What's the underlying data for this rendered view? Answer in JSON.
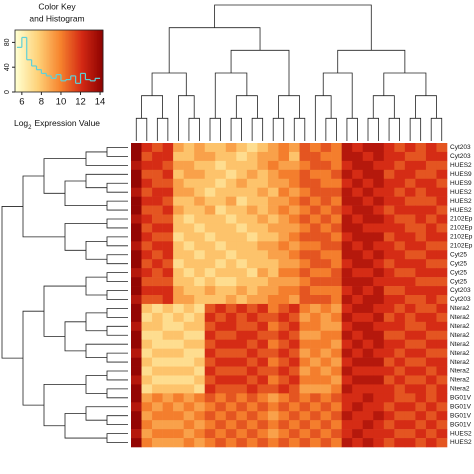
{
  "chart_data": {
    "type": "heatmap",
    "rows": [
      "Cyt203",
      "Cyt203",
      "HUES2",
      "HUES9",
      "HUES9",
      "HUES2",
      "HUES2",
      "HUES2",
      "2102Ep",
      "2102Ep",
      "2102Ep",
      "2102Ep",
      "Cyt25",
      "Cyt25",
      "Cyt25",
      "Cyt25",
      "Cyt203",
      "Cyt203",
      "Ntera2",
      "Ntera2",
      "Ntera2",
      "Ntera2",
      "Ntera2",
      "Ntera2",
      "Ntera2",
      "Ntera2",
      "Ntera2",
      "Ntera2",
      "BG01V",
      "BG01V",
      "BG01V",
      "BG01V",
      "HUES2",
      "HUES2"
    ],
    "columns": [
      null,
      null,
      null,
      null,
      null,
      null,
      null,
      null,
      null,
      null,
      null,
      null,
      null,
      null,
      null,
      null,
      null,
      null,
      null,
      null,
      null,
      null,
      null,
      null,
      null,
      null,
      null,
      null,
      null,
      null
    ],
    "values": [
      [
        14,
        12,
        11,
        12,
        9,
        8,
        9,
        8,
        8,
        9,
        8,
        7,
        8,
        9,
        10,
        9,
        11,
        10,
        11,
        10,
        13,
        12,
        13,
        13,
        12,
        11,
        12,
        11,
        12,
        11
      ],
      [
        14,
        11,
        12,
        12,
        8,
        8,
        9,
        9,
        8,
        8,
        7,
        8,
        9,
        9,
        10,
        8,
        11,
        11,
        10,
        10,
        13,
        13,
        12,
        13,
        12,
        12,
        11,
        11,
        12,
        12
      ],
      [
        13,
        12,
        12,
        11,
        9,
        9,
        8,
        8,
        7,
        8,
        8,
        8,
        9,
        10,
        9,
        9,
        10,
        11,
        11,
        10,
        12,
        13,
        13,
        12,
        12,
        11,
        12,
        12,
        11,
        11
      ],
      [
        14,
        11,
        11,
        12,
        8,
        9,
        9,
        8,
        8,
        7,
        8,
        9,
        8,
        9,
        10,
        10,
        11,
        10,
        10,
        11,
        13,
        12,
        13,
        13,
        11,
        12,
        12,
        11,
        11,
        12
      ],
      [
        14,
        12,
        11,
        11,
        9,
        8,
        8,
        8,
        7,
        8,
        9,
        8,
        8,
        9,
        9,
        10,
        11,
        11,
        10,
        10,
        12,
        13,
        12,
        13,
        12,
        12,
        11,
        12,
        12,
        11
      ],
      [
        13,
        11,
        12,
        12,
        9,
        9,
        8,
        7,
        8,
        8,
        8,
        8,
        9,
        8,
        10,
        9,
        10,
        11,
        11,
        11,
        13,
        12,
        13,
        12,
        12,
        11,
        12,
        11,
        12,
        12
      ],
      [
        14,
        12,
        12,
        11,
        8,
        8,
        9,
        8,
        8,
        9,
        7,
        8,
        8,
        9,
        9,
        10,
        11,
        10,
        11,
        10,
        13,
        13,
        12,
        13,
        12,
        12,
        11,
        11,
        11,
        12
      ],
      [
        14,
        11,
        11,
        12,
        9,
        8,
        8,
        9,
        7,
        8,
        8,
        9,
        8,
        9,
        10,
        9,
        10,
        11,
        10,
        11,
        12,
        13,
        13,
        12,
        11,
        12,
        12,
        12,
        12,
        11
      ],
      [
        13,
        12,
        11,
        11,
        8,
        7,
        8,
        8,
        8,
        7,
        8,
        8,
        9,
        8,
        9,
        10,
        11,
        10,
        11,
        10,
        13,
        12,
        13,
        13,
        12,
        11,
        11,
        12,
        11,
        12
      ],
      [
        14,
        11,
        12,
        12,
        8,
        8,
        7,
        8,
        8,
        8,
        7,
        8,
        8,
        9,
        9,
        9,
        10,
        11,
        10,
        11,
        13,
        13,
        12,
        12,
        12,
        12,
        11,
        11,
        12,
        11
      ],
      [
        14,
        12,
        11,
        11,
        7,
        8,
        8,
        7,
        8,
        8,
        8,
        7,
        8,
        8,
        9,
        10,
        11,
        11,
        11,
        10,
        12,
        13,
        13,
        13,
        11,
        12,
        12,
        11,
        12,
        12
      ],
      [
        13,
        11,
        12,
        12,
        8,
        7,
        8,
        8,
        7,
        8,
        8,
        8,
        9,
        9,
        10,
        9,
        10,
        10,
        11,
        11,
        13,
        12,
        13,
        12,
        12,
        11,
        12,
        12,
        11,
        11
      ],
      [
        14,
        12,
        11,
        12,
        8,
        8,
        7,
        8,
        8,
        7,
        8,
        8,
        8,
        9,
        9,
        10,
        11,
        11,
        10,
        10,
        13,
        13,
        12,
        13,
        12,
        12,
        11,
        11,
        12,
        12
      ],
      [
        14,
        11,
        12,
        11,
        7,
        8,
        8,
        8,
        7,
        8,
        7,
        8,
        8,
        8,
        9,
        9,
        10,
        11,
        11,
        10,
        12,
        13,
        13,
        12,
        11,
        12,
        12,
        12,
        11,
        11
      ],
      [
        13,
        12,
        11,
        12,
        8,
        7,
        8,
        7,
        8,
        8,
        8,
        7,
        9,
        8,
        10,
        10,
        11,
        10,
        10,
        11,
        13,
        12,
        12,
        13,
        12,
        11,
        11,
        12,
        12,
        12
      ],
      [
        14,
        11,
        11,
        11,
        8,
        8,
        7,
        8,
        7,
        7,
        8,
        8,
        8,
        9,
        9,
        9,
        10,
        11,
        11,
        11,
        13,
        13,
        13,
        12,
        12,
        12,
        12,
        11,
        11,
        11
      ],
      [
        14,
        12,
        12,
        12,
        9,
        8,
        8,
        9,
        8,
        8,
        9,
        8,
        9,
        9,
        10,
        10,
        11,
        10,
        10,
        10,
        12,
        13,
        12,
        13,
        11,
        11,
        12,
        12,
        12,
        12
      ],
      [
        13,
        11,
        11,
        12,
        9,
        9,
        8,
        8,
        8,
        9,
        8,
        9,
        9,
        10,
        10,
        9,
        11,
        11,
        11,
        10,
        13,
        12,
        13,
        13,
        12,
        12,
        11,
        11,
        12,
        11
      ],
      [
        14,
        8,
        7,
        8,
        7,
        8,
        7,
        11,
        12,
        11,
        12,
        11,
        12,
        10,
        11,
        12,
        10,
        9,
        10,
        9,
        12,
        13,
        13,
        12,
        12,
        11,
        12,
        11,
        11,
        12
      ],
      [
        14,
        7,
        8,
        7,
        8,
        7,
        8,
        12,
        11,
        12,
        11,
        12,
        11,
        11,
        12,
        11,
        9,
        10,
        9,
        10,
        13,
        12,
        12,
        13,
        11,
        12,
        11,
        12,
        12,
        11
      ],
      [
        13,
        8,
        8,
        7,
        7,
        8,
        8,
        11,
        12,
        12,
        11,
        11,
        12,
        10,
        11,
        12,
        10,
        10,
        9,
        9,
        12,
        13,
        13,
        12,
        12,
        12,
        11,
        11,
        12,
        12
      ],
      [
        14,
        7,
        7,
        8,
        8,
        7,
        7,
        12,
        11,
        11,
        12,
        12,
        11,
        11,
        12,
        11,
        9,
        9,
        10,
        10,
        13,
        12,
        13,
        13,
        11,
        11,
        12,
        12,
        11,
        11
      ],
      [
        14,
        8,
        7,
        7,
        7,
        8,
        8,
        11,
        12,
        12,
        12,
        11,
        12,
        10,
        11,
        12,
        10,
        10,
        10,
        9,
        12,
        13,
        12,
        13,
        12,
        12,
        11,
        11,
        12,
        12
      ],
      [
        13,
        7,
        8,
        8,
        8,
        7,
        7,
        12,
        11,
        11,
        11,
        12,
        11,
        11,
        12,
        11,
        9,
        10,
        9,
        10,
        13,
        12,
        13,
        12,
        12,
        11,
        12,
        12,
        11,
        11
      ],
      [
        14,
        8,
        7,
        7,
        7,
        7,
        8,
        11,
        12,
        12,
        12,
        11,
        12,
        10,
        11,
        12,
        10,
        9,
        10,
        9,
        12,
        13,
        13,
        13,
        11,
        12,
        11,
        11,
        12,
        12
      ],
      [
        14,
        7,
        8,
        8,
        8,
        8,
        7,
        12,
        11,
        11,
        11,
        12,
        11,
        11,
        12,
        11,
        9,
        10,
        9,
        10,
        13,
        12,
        12,
        12,
        12,
        11,
        12,
        12,
        11,
        12
      ],
      [
        13,
        8,
        7,
        7,
        7,
        7,
        8,
        11,
        12,
        12,
        12,
        11,
        12,
        10,
        11,
        12,
        10,
        10,
        10,
        9,
        12,
        13,
        13,
        13,
        11,
        12,
        11,
        11,
        12,
        11
      ],
      [
        14,
        7,
        8,
        8,
        8,
        8,
        7,
        12,
        11,
        11,
        11,
        12,
        11,
        11,
        12,
        11,
        9,
        9,
        9,
        10,
        13,
        12,
        12,
        12,
        12,
        11,
        12,
        12,
        11,
        12
      ],
      [
        14,
        9,
        10,
        9,
        10,
        9,
        10,
        11,
        10,
        11,
        10,
        11,
        10,
        9,
        10,
        11,
        10,
        11,
        10,
        11,
        12,
        12,
        13,
        12,
        12,
        11,
        11,
        12,
        11,
        12
      ],
      [
        13,
        10,
        9,
        10,
        9,
        10,
        9,
        10,
        11,
        10,
        11,
        10,
        11,
        10,
        11,
        10,
        11,
        10,
        11,
        10,
        12,
        13,
        12,
        12,
        11,
        12,
        12,
        11,
        12,
        11
      ],
      [
        14,
        9,
        10,
        10,
        10,
        9,
        10,
        11,
        10,
        11,
        10,
        11,
        10,
        9,
        10,
        11,
        10,
        11,
        10,
        11,
        13,
        12,
        12,
        13,
        12,
        11,
        11,
        12,
        11,
        12
      ],
      [
        14,
        10,
        9,
        9,
        9,
        10,
        9,
        10,
        11,
        10,
        11,
        10,
        11,
        10,
        11,
        10,
        11,
        10,
        11,
        10,
        12,
        12,
        13,
        12,
        11,
        12,
        12,
        11,
        12,
        11
      ],
      [
        13,
        9,
        10,
        10,
        10,
        9,
        10,
        11,
        10,
        11,
        10,
        11,
        10,
        9,
        10,
        11,
        10,
        11,
        10,
        11,
        12,
        13,
        12,
        12,
        12,
        11,
        11,
        12,
        11,
        12
      ],
      [
        14,
        10,
        9,
        9,
        9,
        10,
        9,
        10,
        11,
        10,
        11,
        10,
        11,
        10,
        11,
        10,
        11,
        10,
        11,
        10,
        13,
        12,
        13,
        12,
        11,
        12,
        12,
        11,
        12,
        11
      ]
    ],
    "colorscale": [
      "#ffffd0",
      "#fed27a",
      "#f7862f",
      "#d42a14",
      "#8a0000"
    ],
    "key": {
      "title_lines": [
        "Color Key",
        "and Histogram"
      ],
      "xlabel_base": "Log",
      "xlabel_sub": "2",
      "xlabel_rest": "Expression Value",
      "xlim": [
        5.3,
        14.3
      ],
      "xticks": [
        6,
        8,
        10,
        12,
        14
      ],
      "ylim": [
        0,
        100
      ],
      "yticks": [
        0,
        40,
        80
      ],
      "hist_color": "#5fd0d8",
      "bins": [
        5.5,
        6,
        6.5,
        7,
        7.5,
        8,
        8.5,
        9,
        9.5,
        10,
        10.5,
        11,
        11.5,
        12,
        12.5,
        13,
        13.5,
        14
      ],
      "counts": [
        72,
        88,
        52,
        42,
        36,
        30,
        26,
        22,
        28,
        18,
        20,
        26,
        14,
        30,
        20,
        18,
        22
      ]
    }
  }
}
